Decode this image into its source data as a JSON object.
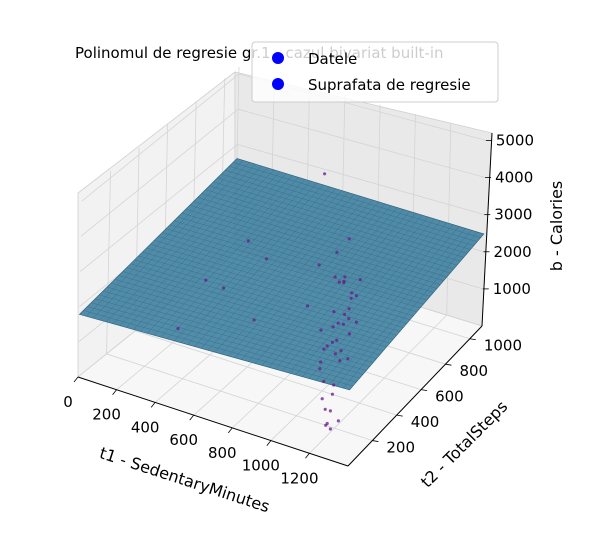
{
  "chart_data": {
    "type": "scatter3d",
    "title": "Polinomul de regresie gr.1 - cazul bivariat built-in",
    "xlabel": "t1 - SedentaryMinutes",
    "ylabel": "t2 - TotalSteps",
    "zlabel": "b - Calories",
    "x_ticks": [
      "0",
      "200",
      "400",
      "600",
      "800",
      "1000",
      "1200"
    ],
    "y_ticks": [
      "200",
      "400",
      "600",
      "800",
      "1000"
    ],
    "z_ticks": [
      "1000",
      "2000",
      "3000",
      "4000",
      "5000"
    ],
    "xlim": [
      0,
      1400
    ],
    "ylim": [
      0,
      1100
    ],
    "zlim": [
      0,
      5200
    ],
    "legend": {
      "placement": "top-right",
      "entries": [
        {
          "label": "Datele",
          "color": "#0000ff"
        },
        {
          "label": "Suprafata de regresie",
          "color": "#0000ff"
        }
      ]
    },
    "surface": {
      "type": "plane",
      "color": "#3e7fa0",
      "grid_color": "#2d5f7a",
      "corners_z": {
        "x0_y0": 1780,
        "x1_y0": 2050,
        "x0_y1": 2600,
        "x1_y1": 2480
      }
    },
    "points_color": "#6a1a8a",
    "points": [
      [
        1150,
        200,
        430
      ],
      [
        1180,
        160,
        180
      ],
      [
        1120,
        220,
        600
      ],
      [
        1200,
        140,
        330
      ],
      [
        1160,
        240,
        720
      ],
      [
        1230,
        120,
        300
      ],
      [
        1100,
        260,
        900
      ],
      [
        1190,
        180,
        520
      ],
      [
        1220,
        200,
        230
      ],
      [
        1140,
        280,
        800
      ],
      [
        1170,
        300,
        3600
      ],
      [
        1110,
        330,
        4200
      ],
      [
        1200,
        260,
        3900
      ],
      [
        1180,
        320,
        4700
      ],
      [
        1130,
        360,
        3300
      ],
      [
        1210,
        300,
        3200
      ],
      [
        1250,
        280,
        3400
      ],
      [
        1080,
        400,
        3100
      ],
      [
        1160,
        380,
        3000
      ],
      [
        1230,
        340,
        3600
      ],
      [
        300,
        300,
        900
      ],
      [
        150,
        700,
        700
      ],
      [
        700,
        820,
        4100
      ],
      [
        500,
        350,
        2200
      ],
      [
        450,
        600,
        2600
      ],
      [
        620,
        500,
        2700
      ],
      [
        800,
        650,
        2300
      ],
      [
        900,
        420,
        2100
      ],
      [
        950,
        560,
        2500
      ],
      [
        700,
        300,
        1800
      ],
      [
        1180,
        200,
        2300
      ],
      [
        1220,
        210,
        2100
      ],
      [
        1150,
        250,
        2500
      ],
      [
        1240,
        170,
        2000
      ],
      [
        1100,
        230,
        2400
      ],
      [
        1190,
        280,
        2800
      ],
      [
        1210,
        240,
        2700
      ],
      [
        1160,
        190,
        2200
      ],
      [
        1130,
        210,
        2000
      ],
      [
        1250,
        220,
        1900
      ],
      [
        1170,
        260,
        2600
      ],
      [
        1200,
        300,
        2900
      ],
      [
        1140,
        170,
        1800
      ],
      [
        1230,
        260,
        2400
      ],
      [
        1120,
        300,
        2700
      ],
      [
        1180,
        330,
        2500
      ],
      [
        1150,
        150,
        1700
      ],
      [
        1210,
        180,
        2100
      ],
      [
        1240,
        300,
        2600
      ],
      [
        1190,
        220,
        2300
      ]
    ]
  }
}
